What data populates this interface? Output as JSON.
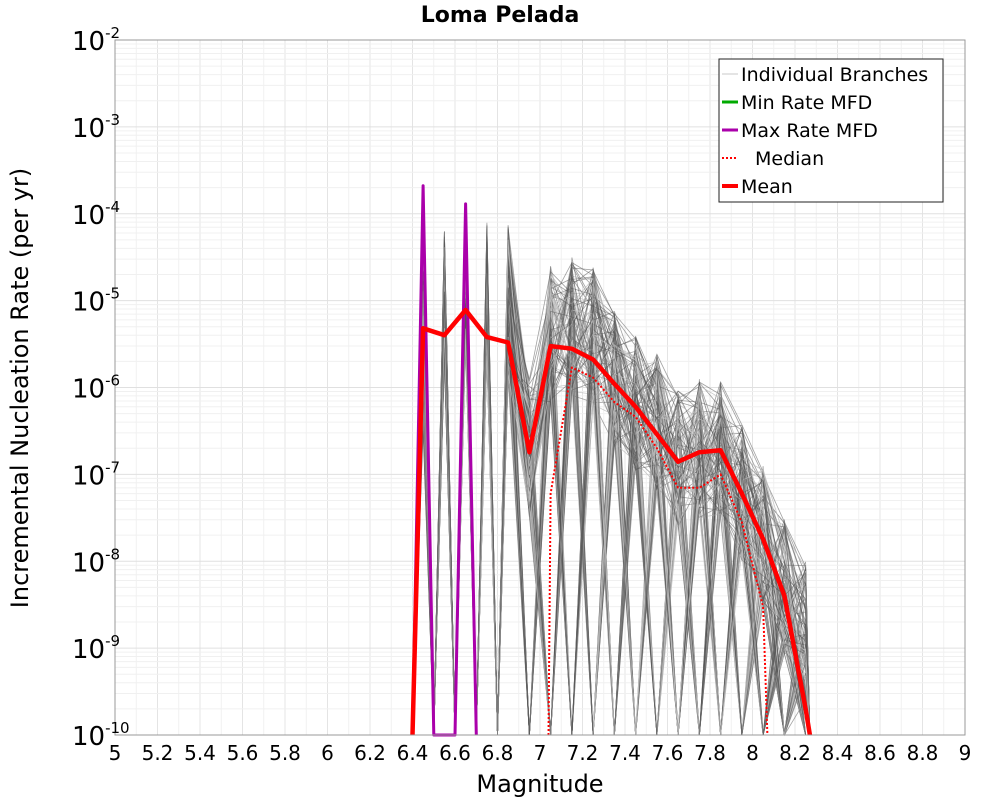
{
  "chart_data": {
    "type": "line",
    "title": "Loma Pelada",
    "xlabel": "Magnitude",
    "ylabel": "Incremental Nucleation Rate (per yr)",
    "xlim": [
      5,
      9
    ],
    "ylim": [
      1e-10,
      0.01
    ],
    "y_scale": "log",
    "grid": true,
    "legend_position": "top-right",
    "x_ticks": [
      "5",
      "5.2",
      "5.4",
      "5.6",
      "5.8",
      "6",
      "6.2",
      "6.4",
      "6.6",
      "6.8",
      "7",
      "7.2",
      "7.4",
      "7.6",
      "7.8",
      "8",
      "8.2",
      "8.4",
      "8.6",
      "8.8",
      "9"
    ],
    "y_ticks": [
      {
        "base": "10",
        "exp": "-10"
      },
      {
        "base": "10",
        "exp": "-9"
      },
      {
        "base": "10",
        "exp": "-8"
      },
      {
        "base": "10",
        "exp": "-7"
      },
      {
        "base": "10",
        "exp": "-6"
      },
      {
        "base": "10",
        "exp": "-5"
      },
      {
        "base": "10",
        "exp": "-4"
      },
      {
        "base": "10",
        "exp": "-3"
      },
      {
        "base": "10",
        "exp": "-2"
      }
    ],
    "legend": [
      {
        "label": "Individual Branches",
        "color": "#c8c8c8",
        "style": "thin"
      },
      {
        "label": "Min Rate MFD",
        "color": "#00aa00",
        "style": "solid"
      },
      {
        "label": "Max Rate MFD",
        "color": "#aa00aa",
        "style": "solid"
      },
      {
        "label": "Median",
        "color": "#ff0000",
        "style": "dotted"
      },
      {
        "label": "Mean",
        "color": "#ff0000",
        "style": "thick"
      }
    ],
    "series": [
      {
        "name": "Mean",
        "color": "#ff0000",
        "x": [
          6.4,
          6.45,
          6.55,
          6.65,
          6.75,
          6.85,
          6.95,
          7.05,
          7.15,
          7.25,
          7.35,
          7.45,
          7.55,
          7.65,
          7.75,
          7.85,
          7.95,
          8.05,
          8.15,
          8.25,
          8.27
        ],
        "values": [
          1e-10,
          4.8e-06,
          4e-06,
          7.8e-06,
          3.8e-06,
          3.3e-06,
          1.8e-07,
          3e-06,
          2.8e-06,
          2.1e-06,
          1.1e-06,
          6e-07,
          2.9e-07,
          1.4e-07,
          1.8e-07,
          1.9e-07,
          6e-08,
          1.8e-08,
          4e-09,
          2e-10,
          1e-10
        ]
      },
      {
        "name": "Median",
        "color": "#ff0000",
        "x": [
          7.04,
          7.05,
          7.15,
          7.25,
          7.35,
          7.45,
          7.55,
          7.65,
          7.75,
          7.85,
          7.95,
          8.05,
          8.07
        ],
        "values": [
          1e-10,
          6e-08,
          1.7e-06,
          1.3e-06,
          6.8e-07,
          4.6e-07,
          2e-07,
          7e-08,
          7e-08,
          1e-07,
          2.8e-08,
          3e-09,
          1e-10
        ]
      },
      {
        "name": "Max Rate MFD",
        "color": "#aa00aa",
        "x": [
          6.4,
          6.45,
          6.5,
          6.6,
          6.65,
          6.7
        ],
        "values": [
          1e-10,
          0.00021,
          1e-10,
          1e-10,
          0.00013,
          1e-10
        ]
      },
      {
        "name": "Min Rate MFD",
        "color": "#00aa00",
        "x": [],
        "values": []
      }
    ]
  }
}
